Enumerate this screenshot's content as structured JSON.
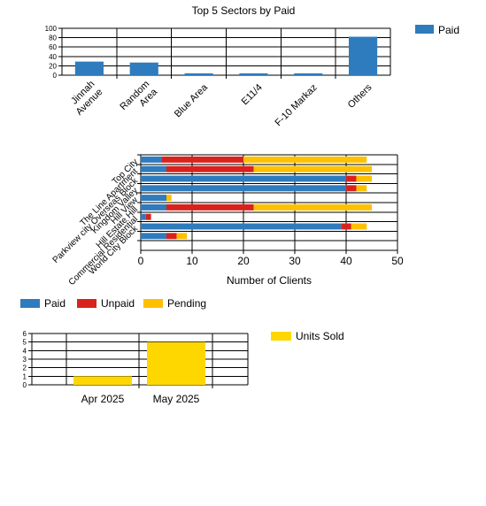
{
  "colors": {
    "paid": "#2E7BBE",
    "unpaid": "#D9221C",
    "pending": "#FFC000",
    "units": "#FFD700",
    "grid": "#000000"
  },
  "chart_data": [
    {
      "type": "bar",
      "title": "Top 5 Sectors by Paid",
      "categories": [
        "Jinnah Avenue",
        "Random Area",
        "Blue Area",
        "E11/4",
        "F-10 Markaz",
        "Others"
      ],
      "category_lines": [
        [
          "Jinnah",
          "Avenue"
        ],
        [
          "Random",
          "Area"
        ],
        [
          "Blue Area"
        ],
        [
          "E11/4"
        ],
        [
          "F-10 Markaz"
        ],
        [
          "Others"
        ]
      ],
      "series": [
        {
          "name": "Paid",
          "values": [
            29,
            27,
            4,
            4,
            4,
            82
          ]
        }
      ],
      "ylim": [
        0,
        100
      ],
      "yticks": [
        "0",
        "20",
        "40",
        "60",
        "80",
        "100"
      ],
      "legend": "top-right",
      "grid": true
    },
    {
      "type": "bar",
      "orientation": "horizontal",
      "stacked": true,
      "title": "",
      "categories": [
        "Top City",
        "The Line Apartment",
        "Parkview city Overseas Block",
        "Kingdom Valley",
        "Hill View",
        "Hill Estate Hill",
        "Commercial Residential",
        "World City Block",
        "",
        ""
      ],
      "series": [
        {
          "name": "Paid",
          "values": [
            4,
            5,
            40,
            40,
            5,
            5,
            1,
            39,
            5,
            0
          ]
        },
        {
          "name": "Unpaid",
          "values": [
            16,
            17,
            2,
            2,
            0,
            17,
            1,
            2,
            2,
            0
          ]
        },
        {
          "name": "Pending",
          "values": [
            24,
            23,
            3,
            2,
            1,
            23,
            0,
            3,
            2,
            0
          ]
        }
      ],
      "xlabel": "Number of Clients",
      "xlim": [
        0,
        50
      ],
      "xticks": [
        "0",
        "10",
        "20",
        "30",
        "40",
        "50"
      ],
      "legend": "bottom",
      "grid": true
    },
    {
      "type": "bar",
      "title": "",
      "categories": [
        "Apr 2025",
        "May 2025"
      ],
      "series": [
        {
          "name": "Units Sold",
          "values": [
            1,
            5
          ]
        }
      ],
      "ylim": [
        0,
        6
      ],
      "yticks": [
        "0",
        "1",
        "2",
        "3",
        "4",
        "5",
        "6"
      ],
      "legend": "top-right",
      "grid": true
    }
  ]
}
